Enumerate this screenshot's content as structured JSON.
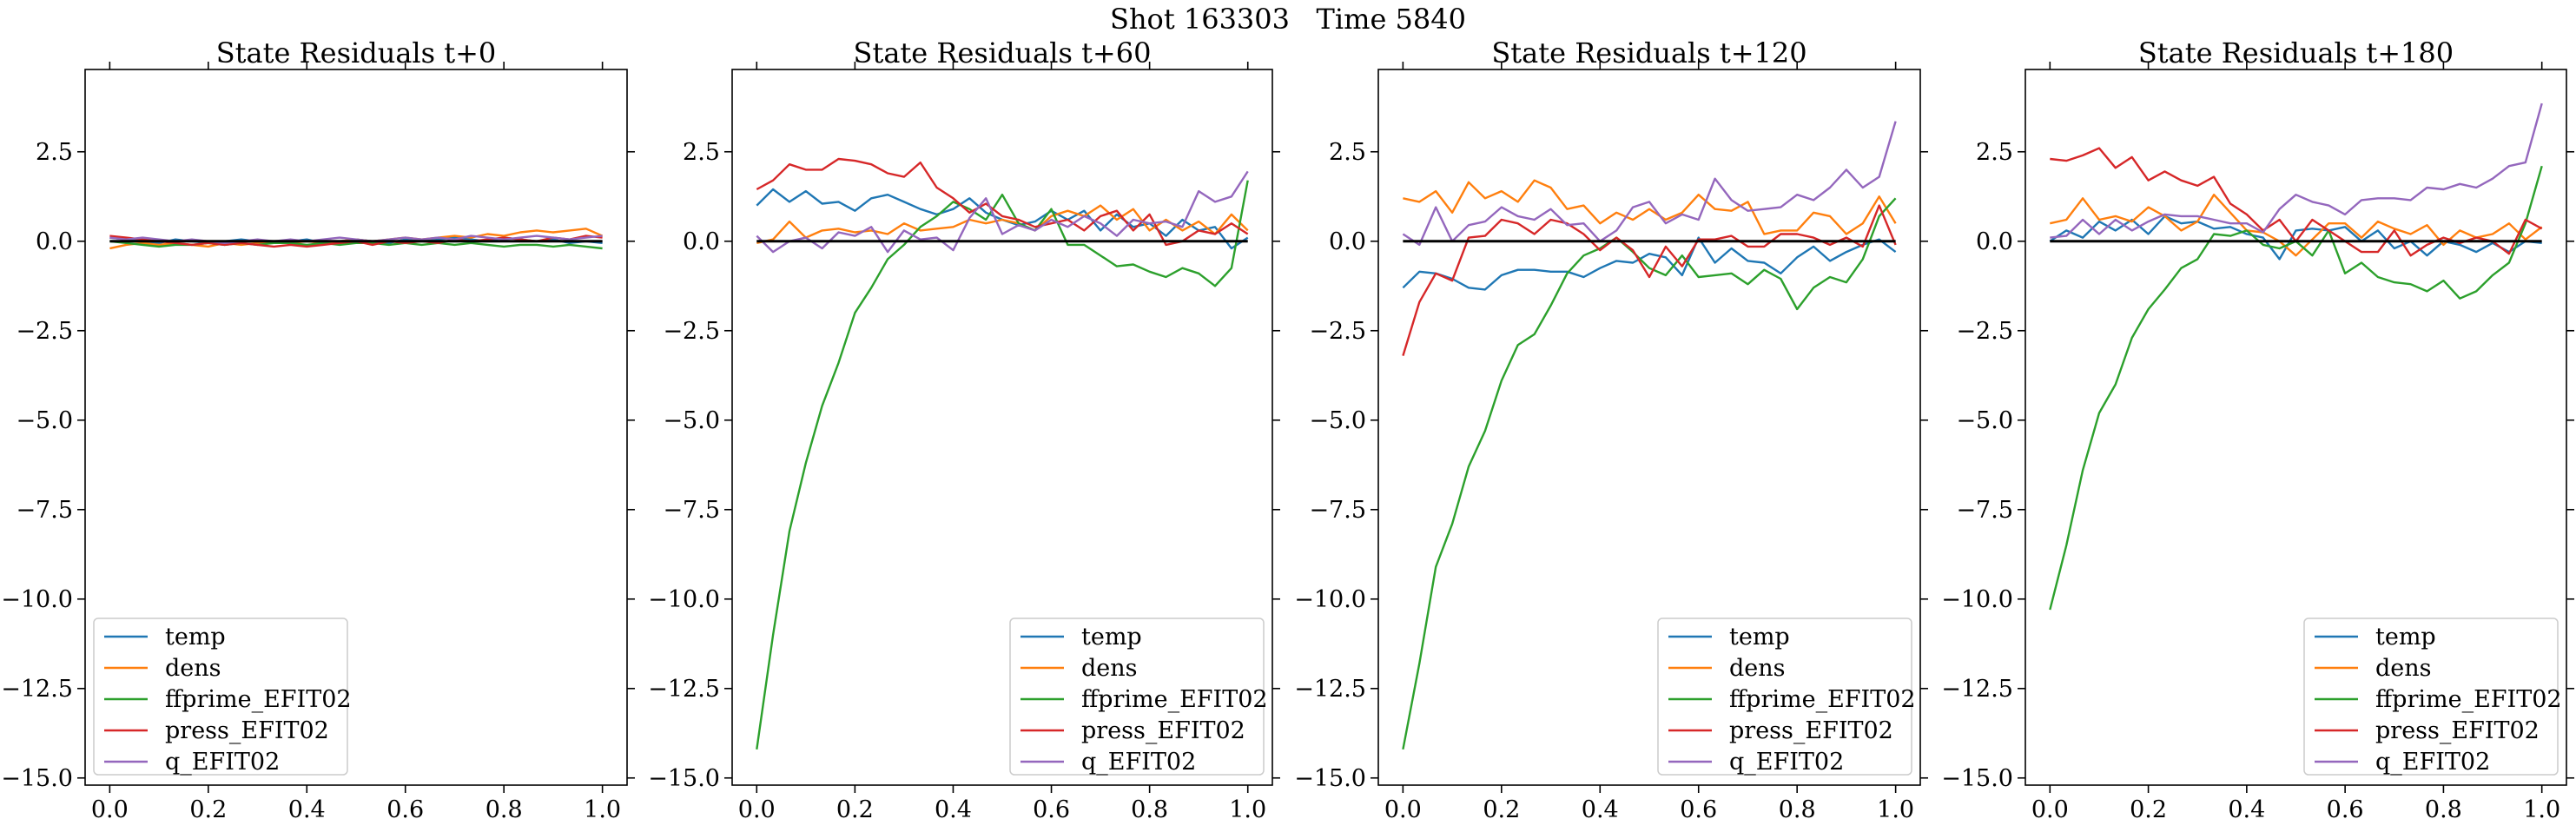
{
  "figure": {
    "title": "Shot 163303   Time 5840"
  },
  "colors": {
    "temp": "#1f77b4",
    "dens": "#ff7f0e",
    "ffprime_EFIT02": "#2ca02c",
    "press_EFIT02": "#d62728",
    "q_EFIT02": "#9467bd",
    "zero_line": "#000000"
  },
  "chart_data": [
    {
      "type": "line",
      "title": "State Residuals t+0",
      "xlim": [
        -0.05,
        1.05
      ],
      "ylim": [
        -15.2,
        4.8
      ],
      "xticks": [
        0.0,
        0.2,
        0.4,
        0.6,
        0.8,
        1.0
      ],
      "xtick_labels": [
        "0.0",
        "0.2",
        "0.4",
        "0.6",
        "0.8",
        "1.0"
      ],
      "yticks": [
        2.5,
        0.0,
        -2.5,
        -5.0,
        -7.5,
        -10.0,
        -12.5,
        -15.0
      ],
      "ytick_labels": [
        "2.5",
        "0.0",
        "−2.5",
        "−5.0",
        "−7.5",
        "−10.0",
        "−12.5",
        "−15.0"
      ],
      "zero_line": true,
      "legend": "lower-left",
      "x": [
        0.0,
        0.0333,
        0.0667,
        0.1,
        0.1333,
        0.1667,
        0.2,
        0.2333,
        0.2667,
        0.3,
        0.3333,
        0.3667,
        0.4,
        0.4333,
        0.4667,
        0.5,
        0.5333,
        0.5667,
        0.6,
        0.6333,
        0.6667,
        0.7,
        0.7333,
        0.7667,
        0.8,
        0.8333,
        0.8667,
        0.9,
        0.9333,
        0.9667,
        1.0
      ],
      "series": [
        {
          "name": "temp",
          "values": [
            0.1,
            0.05,
            0.0,
            -0.05,
            0.05,
            0.0,
            -0.05,
            0.0,
            0.05,
            0.0,
            -0.05,
            0.0,
            0.05,
            -0.05,
            0.0,
            0.05,
            0.0,
            -0.05,
            0.05,
            0.0,
            0.05,
            0.1,
            0.05,
            0.0,
            0.1,
            0.05,
            0.0,
            0.05,
            -0.05,
            0.0,
            -0.05
          ]
        },
        {
          "name": "dens",
          "values": [
            -0.2,
            -0.1,
            -0.05,
            -0.1,
            -0.05,
            -0.1,
            -0.15,
            -0.05,
            -0.1,
            -0.05,
            0.0,
            -0.05,
            0.0,
            -0.05,
            0.0,
            0.05,
            0.0,
            0.05,
            0.1,
            0.05,
            0.1,
            0.15,
            0.1,
            0.2,
            0.15,
            0.25,
            0.3,
            0.25,
            0.3,
            0.35,
            0.15
          ]
        },
        {
          "name": "ffprime_EFIT02",
          "values": [
            0.0,
            -0.05,
            -0.1,
            -0.15,
            -0.1,
            -0.1,
            -0.05,
            -0.1,
            -0.05,
            -0.1,
            -0.05,
            -0.05,
            -0.1,
            -0.05,
            -0.1,
            -0.05,
            -0.05,
            -0.1,
            -0.05,
            -0.1,
            -0.05,
            -0.1,
            -0.05,
            -0.1,
            -0.15,
            -0.1,
            -0.1,
            -0.15,
            -0.1,
            -0.15,
            -0.2
          ]
        },
        {
          "name": "press_EFIT02",
          "values": [
            0.15,
            0.1,
            0.05,
            0.0,
            -0.05,
            -0.1,
            -0.05,
            -0.1,
            -0.05,
            -0.1,
            -0.15,
            -0.1,
            -0.15,
            -0.1,
            -0.05,
            0.0,
            -0.1,
            0.0,
            -0.05,
            0.0,
            -0.05,
            0.05,
            0.0,
            0.05,
            0.1,
            0.05,
            0.0,
            0.1,
            0.05,
            0.15,
            0.1
          ]
        },
        {
          "name": "q_EFIT02",
          "values": [
            0.1,
            0.05,
            0.1,
            0.05,
            0.0,
            0.05,
            0.0,
            -0.05,
            0.0,
            0.05,
            0.0,
            0.05,
            0.0,
            0.05,
            0.1,
            0.05,
            0.0,
            0.05,
            0.1,
            0.05,
            0.1,
            0.05,
            0.15,
            0.1,
            0.05,
            0.1,
            0.15,
            0.1,
            0.05,
            0.1,
            0.15
          ]
        }
      ]
    },
    {
      "type": "line",
      "title": "State Residuals t+60",
      "xlim": [
        -0.05,
        1.05
      ],
      "ylim": [
        -15.2,
        4.8
      ],
      "xticks": [
        0.0,
        0.2,
        0.4,
        0.6,
        0.8,
        1.0
      ],
      "xtick_labels": [
        "0.0",
        "0.2",
        "0.4",
        "0.6",
        "0.8",
        "1.0"
      ],
      "yticks": [
        2.5,
        0.0,
        -2.5,
        -5.0,
        -7.5,
        -10.0,
        -12.5,
        -15.0
      ],
      "ytick_labels": [
        "2.5",
        "0.0",
        "−2.5",
        "−5.0",
        "−7.5",
        "−10.0",
        "−12.5",
        "−15.0"
      ],
      "zero_line": true,
      "legend": "lower-right",
      "x": [
        0.0,
        0.0333,
        0.0667,
        0.1,
        0.1333,
        0.1667,
        0.2,
        0.2333,
        0.2667,
        0.3,
        0.3333,
        0.3667,
        0.4,
        0.4333,
        0.4667,
        0.5,
        0.5333,
        0.5667,
        0.6,
        0.6333,
        0.6667,
        0.7,
        0.7333,
        0.7667,
        0.8,
        0.8333,
        0.8667,
        0.9,
        0.9333,
        0.9667,
        1.0
      ],
      "series": [
        {
          "name": "temp",
          "values": [
            1.0,
            1.45,
            1.1,
            1.4,
            1.05,
            1.1,
            0.85,
            1.2,
            1.3,
            1.1,
            0.9,
            0.75,
            0.9,
            1.2,
            0.8,
            0.6,
            0.45,
            0.55,
            0.85,
            0.6,
            0.85,
            0.3,
            0.75,
            0.4,
            0.5,
            0.15,
            0.6,
            0.3,
            0.4,
            -0.2,
            0.1
          ]
        },
        {
          "name": "dens",
          "values": [
            -0.05,
            0.05,
            0.55,
            0.1,
            0.3,
            0.35,
            0.25,
            0.3,
            0.2,
            0.5,
            0.3,
            0.35,
            0.4,
            0.6,
            0.5,
            0.6,
            0.5,
            0.3,
            0.7,
            0.85,
            0.7,
            1.0,
            0.6,
            0.9,
            0.3,
            0.6,
            0.3,
            0.55,
            0.2,
            0.75,
            0.3
          ]
        },
        {
          "name": "ffprime_EFIT02",
          "values": [
            -14.2,
            -11.0,
            -8.1,
            -6.2,
            -4.6,
            -3.4,
            -2.0,
            -1.3,
            -0.5,
            -0.1,
            0.4,
            0.7,
            1.1,
            0.9,
            0.6,
            1.3,
            0.5,
            0.3,
            0.9,
            -0.1,
            -0.1,
            -0.4,
            -0.7,
            -0.65,
            -0.85,
            -1.0,
            -0.75,
            -0.9,
            -1.25,
            -0.75,
            1.7
          ]
        },
        {
          "name": "press_EFIT02",
          "values": [
            1.45,
            1.7,
            2.15,
            2.0,
            2.0,
            2.3,
            2.25,
            2.15,
            1.9,
            1.8,
            2.2,
            1.5,
            1.2,
            0.8,
            1.05,
            0.7,
            0.6,
            0.4,
            0.5,
            0.6,
            0.3,
            0.7,
            0.85,
            0.3,
            0.75,
            -0.1,
            0.0,
            0.3,
            0.2,
            0.5,
            0.2
          ]
        },
        {
          "name": "q_EFIT02",
          "values": [
            0.15,
            -0.3,
            0.0,
            0.1,
            -0.2,
            0.25,
            0.15,
            0.4,
            -0.3,
            0.3,
            0.05,
            0.1,
            -0.25,
            0.65,
            1.2,
            0.2,
            0.45,
            0.3,
            0.6,
            0.4,
            0.7,
            0.5,
            0.15,
            0.6,
            0.5,
            0.55,
            0.4,
            1.4,
            1.1,
            1.25,
            1.95
          ]
        }
      ]
    },
    {
      "type": "line",
      "title": "State Residuals t+120",
      "xlim": [
        -0.05,
        1.05
      ],
      "ylim": [
        -15.2,
        4.8
      ],
      "xticks": [
        0.0,
        0.2,
        0.4,
        0.6,
        0.8,
        1.0
      ],
      "xtick_labels": [
        "0.0",
        "0.2",
        "0.4",
        "0.6",
        "0.8",
        "1.0"
      ],
      "yticks": [
        2.5,
        0.0,
        -2.5,
        -5.0,
        -7.5,
        -10.0,
        -12.5,
        -15.0
      ],
      "ytick_labels": [
        "2.5",
        "0.0",
        "−2.5",
        "−5.0",
        "−7.5",
        "−10.0",
        "−12.5",
        "−15.0"
      ],
      "zero_line": true,
      "legend": "lower-right",
      "x": [
        0.0,
        0.0333,
        0.0667,
        0.1,
        0.1333,
        0.1667,
        0.2,
        0.2333,
        0.2667,
        0.3,
        0.3333,
        0.3667,
        0.4,
        0.4333,
        0.4667,
        0.5,
        0.5333,
        0.5667,
        0.6,
        0.6333,
        0.6667,
        0.7,
        0.7333,
        0.7667,
        0.8,
        0.8333,
        0.8667,
        0.9,
        0.9333,
        0.9667,
        1.0
      ],
      "series": [
        {
          "name": "temp",
          "values": [
            -1.3,
            -0.85,
            -0.9,
            -1.05,
            -1.3,
            -1.35,
            -0.95,
            -0.8,
            -0.8,
            -0.85,
            -0.85,
            -1.0,
            -0.75,
            -0.55,
            -0.6,
            -0.35,
            -0.45,
            -0.95,
            0.1,
            -0.6,
            -0.2,
            -0.55,
            -0.6,
            -0.9,
            -0.45,
            -0.15,
            -0.55,
            -0.3,
            -0.1,
            0.05,
            -0.3
          ]
        },
        {
          "name": "dens",
          "values": [
            1.2,
            1.1,
            1.4,
            0.8,
            1.65,
            1.2,
            1.4,
            1.1,
            1.7,
            1.5,
            0.9,
            1.0,
            0.5,
            0.8,
            0.6,
            0.9,
            0.6,
            0.8,
            1.3,
            0.9,
            0.85,
            1.1,
            0.2,
            0.3,
            0.3,
            0.8,
            0.7,
            0.2,
            0.5,
            1.25,
            0.5
          ]
        },
        {
          "name": "ffprime_EFIT02",
          "values": [
            -14.2,
            -11.8,
            -9.1,
            -7.9,
            -6.3,
            -5.3,
            -3.9,
            -2.9,
            -2.6,
            -1.8,
            -0.9,
            -0.4,
            -0.2,
            0.1,
            -0.3,
            -0.75,
            -0.95,
            -0.4,
            -1.0,
            -0.95,
            -0.9,
            -1.2,
            -0.8,
            -1.05,
            -1.9,
            -1.3,
            -1.0,
            -1.15,
            -0.5,
            0.7,
            1.2
          ]
        },
        {
          "name": "press_EFIT02",
          "values": [
            -3.2,
            -1.7,
            -0.9,
            -1.1,
            0.1,
            0.15,
            0.6,
            0.5,
            0.2,
            0.6,
            0.5,
            0.2,
            -0.25,
            0.1,
            -0.25,
            -1.0,
            -0.15,
            -0.7,
            0.05,
            0.05,
            0.15,
            -0.15,
            -0.15,
            0.2,
            0.2,
            0.1,
            -0.1,
            0.1,
            -0.15,
            1.0,
            -0.1
          ]
        },
        {
          "name": "q_EFIT02",
          "values": [
            0.2,
            -0.1,
            0.95,
            0.0,
            0.45,
            0.55,
            0.95,
            0.7,
            0.6,
            0.9,
            0.45,
            0.5,
            0.0,
            0.3,
            0.95,
            1.1,
            0.5,
            0.75,
            0.6,
            1.75,
            1.15,
            0.85,
            0.9,
            0.95,
            1.3,
            1.15,
            1.5,
            2.0,
            1.5,
            1.8,
            3.35
          ]
        }
      ]
    },
    {
      "type": "line",
      "title": "State Residuals t+180",
      "xlim": [
        -0.05,
        1.05
      ],
      "ylim": [
        -15.2,
        4.8
      ],
      "xticks": [
        0.0,
        0.2,
        0.4,
        0.6,
        0.8,
        1.0
      ],
      "xtick_labels": [
        "0.0",
        "0.2",
        "0.4",
        "0.6",
        "0.8",
        "1.0"
      ],
      "yticks": [
        2.5,
        0.0,
        -2.5,
        -5.0,
        -7.5,
        -10.0,
        -12.5,
        -15.0
      ],
      "ytick_labels": [
        "2.5",
        "0.0",
        "−2.5",
        "−5.0",
        "−7.5",
        "−10.0",
        "−12.5",
        "−15.0"
      ],
      "zero_line": true,
      "legend": "lower-right",
      "x": [
        0.0,
        0.0333,
        0.0667,
        0.1,
        0.1333,
        0.1667,
        0.2,
        0.2333,
        0.2667,
        0.3,
        0.3333,
        0.3667,
        0.4,
        0.4333,
        0.4667,
        0.5,
        0.5333,
        0.5667,
        0.6,
        0.6333,
        0.6667,
        0.7,
        0.7333,
        0.7667,
        0.8,
        0.8333,
        0.8667,
        0.9,
        0.9333,
        0.9667,
        1.0
      ],
      "series": [
        {
          "name": "temp",
          "values": [
            0.0,
            0.3,
            0.1,
            0.55,
            0.3,
            0.6,
            0.2,
            0.7,
            0.5,
            0.55,
            0.35,
            0.4,
            0.2,
            0.1,
            -0.5,
            0.3,
            0.35,
            0.3,
            0.4,
            0.0,
            0.3,
            -0.2,
            0.0,
            -0.4,
            0.0,
            -0.1,
            -0.3,
            -0.05,
            -0.3,
            0.0,
            -0.05
          ]
        },
        {
          "name": "dens",
          "values": [
            0.5,
            0.6,
            1.2,
            0.6,
            0.7,
            0.55,
            0.95,
            0.7,
            0.3,
            0.55,
            1.3,
            0.8,
            0.3,
            0.25,
            0.0,
            -0.4,
            0.05,
            0.5,
            0.5,
            0.1,
            0.55,
            0.35,
            0.2,
            0.45,
            -0.1,
            0.3,
            0.1,
            0.2,
            0.5,
            0.05,
            0.4
          ]
        },
        {
          "name": "ffprime_EFIT02",
          "values": [
            -10.3,
            -8.5,
            -6.4,
            -4.8,
            -4.0,
            -2.7,
            -1.9,
            -1.35,
            -0.75,
            -0.5,
            0.2,
            0.15,
            0.3,
            -0.1,
            -0.2,
            0.0,
            -0.4,
            0.3,
            -0.9,
            -0.6,
            -1.0,
            -1.15,
            -1.2,
            -1.4,
            -1.1,
            -1.6,
            -1.4,
            -0.95,
            -0.6,
            0.5,
            2.1
          ]
        },
        {
          "name": "press_EFIT02",
          "values": [
            2.3,
            2.25,
            2.4,
            2.6,
            2.05,
            2.35,
            1.7,
            1.95,
            1.7,
            1.55,
            1.8,
            1.05,
            0.75,
            0.3,
            0.6,
            0.0,
            0.6,
            0.3,
            0.0,
            -0.3,
            -0.3,
            0.3,
            -0.4,
            -0.1,
            0.1,
            -0.05,
            0.1,
            0.0,
            -0.35,
            0.6,
            0.35
          ]
        },
        {
          "name": "q_EFIT02",
          "values": [
            0.1,
            0.15,
            0.6,
            0.2,
            0.6,
            0.3,
            0.55,
            0.75,
            0.7,
            0.7,
            0.6,
            0.5,
            0.5,
            0.25,
            0.9,
            1.3,
            1.1,
            1.0,
            0.75,
            1.15,
            1.2,
            1.2,
            1.15,
            1.5,
            1.45,
            1.6,
            1.5,
            1.75,
            2.1,
            2.2,
            3.85
          ]
        }
      ]
    }
  ]
}
